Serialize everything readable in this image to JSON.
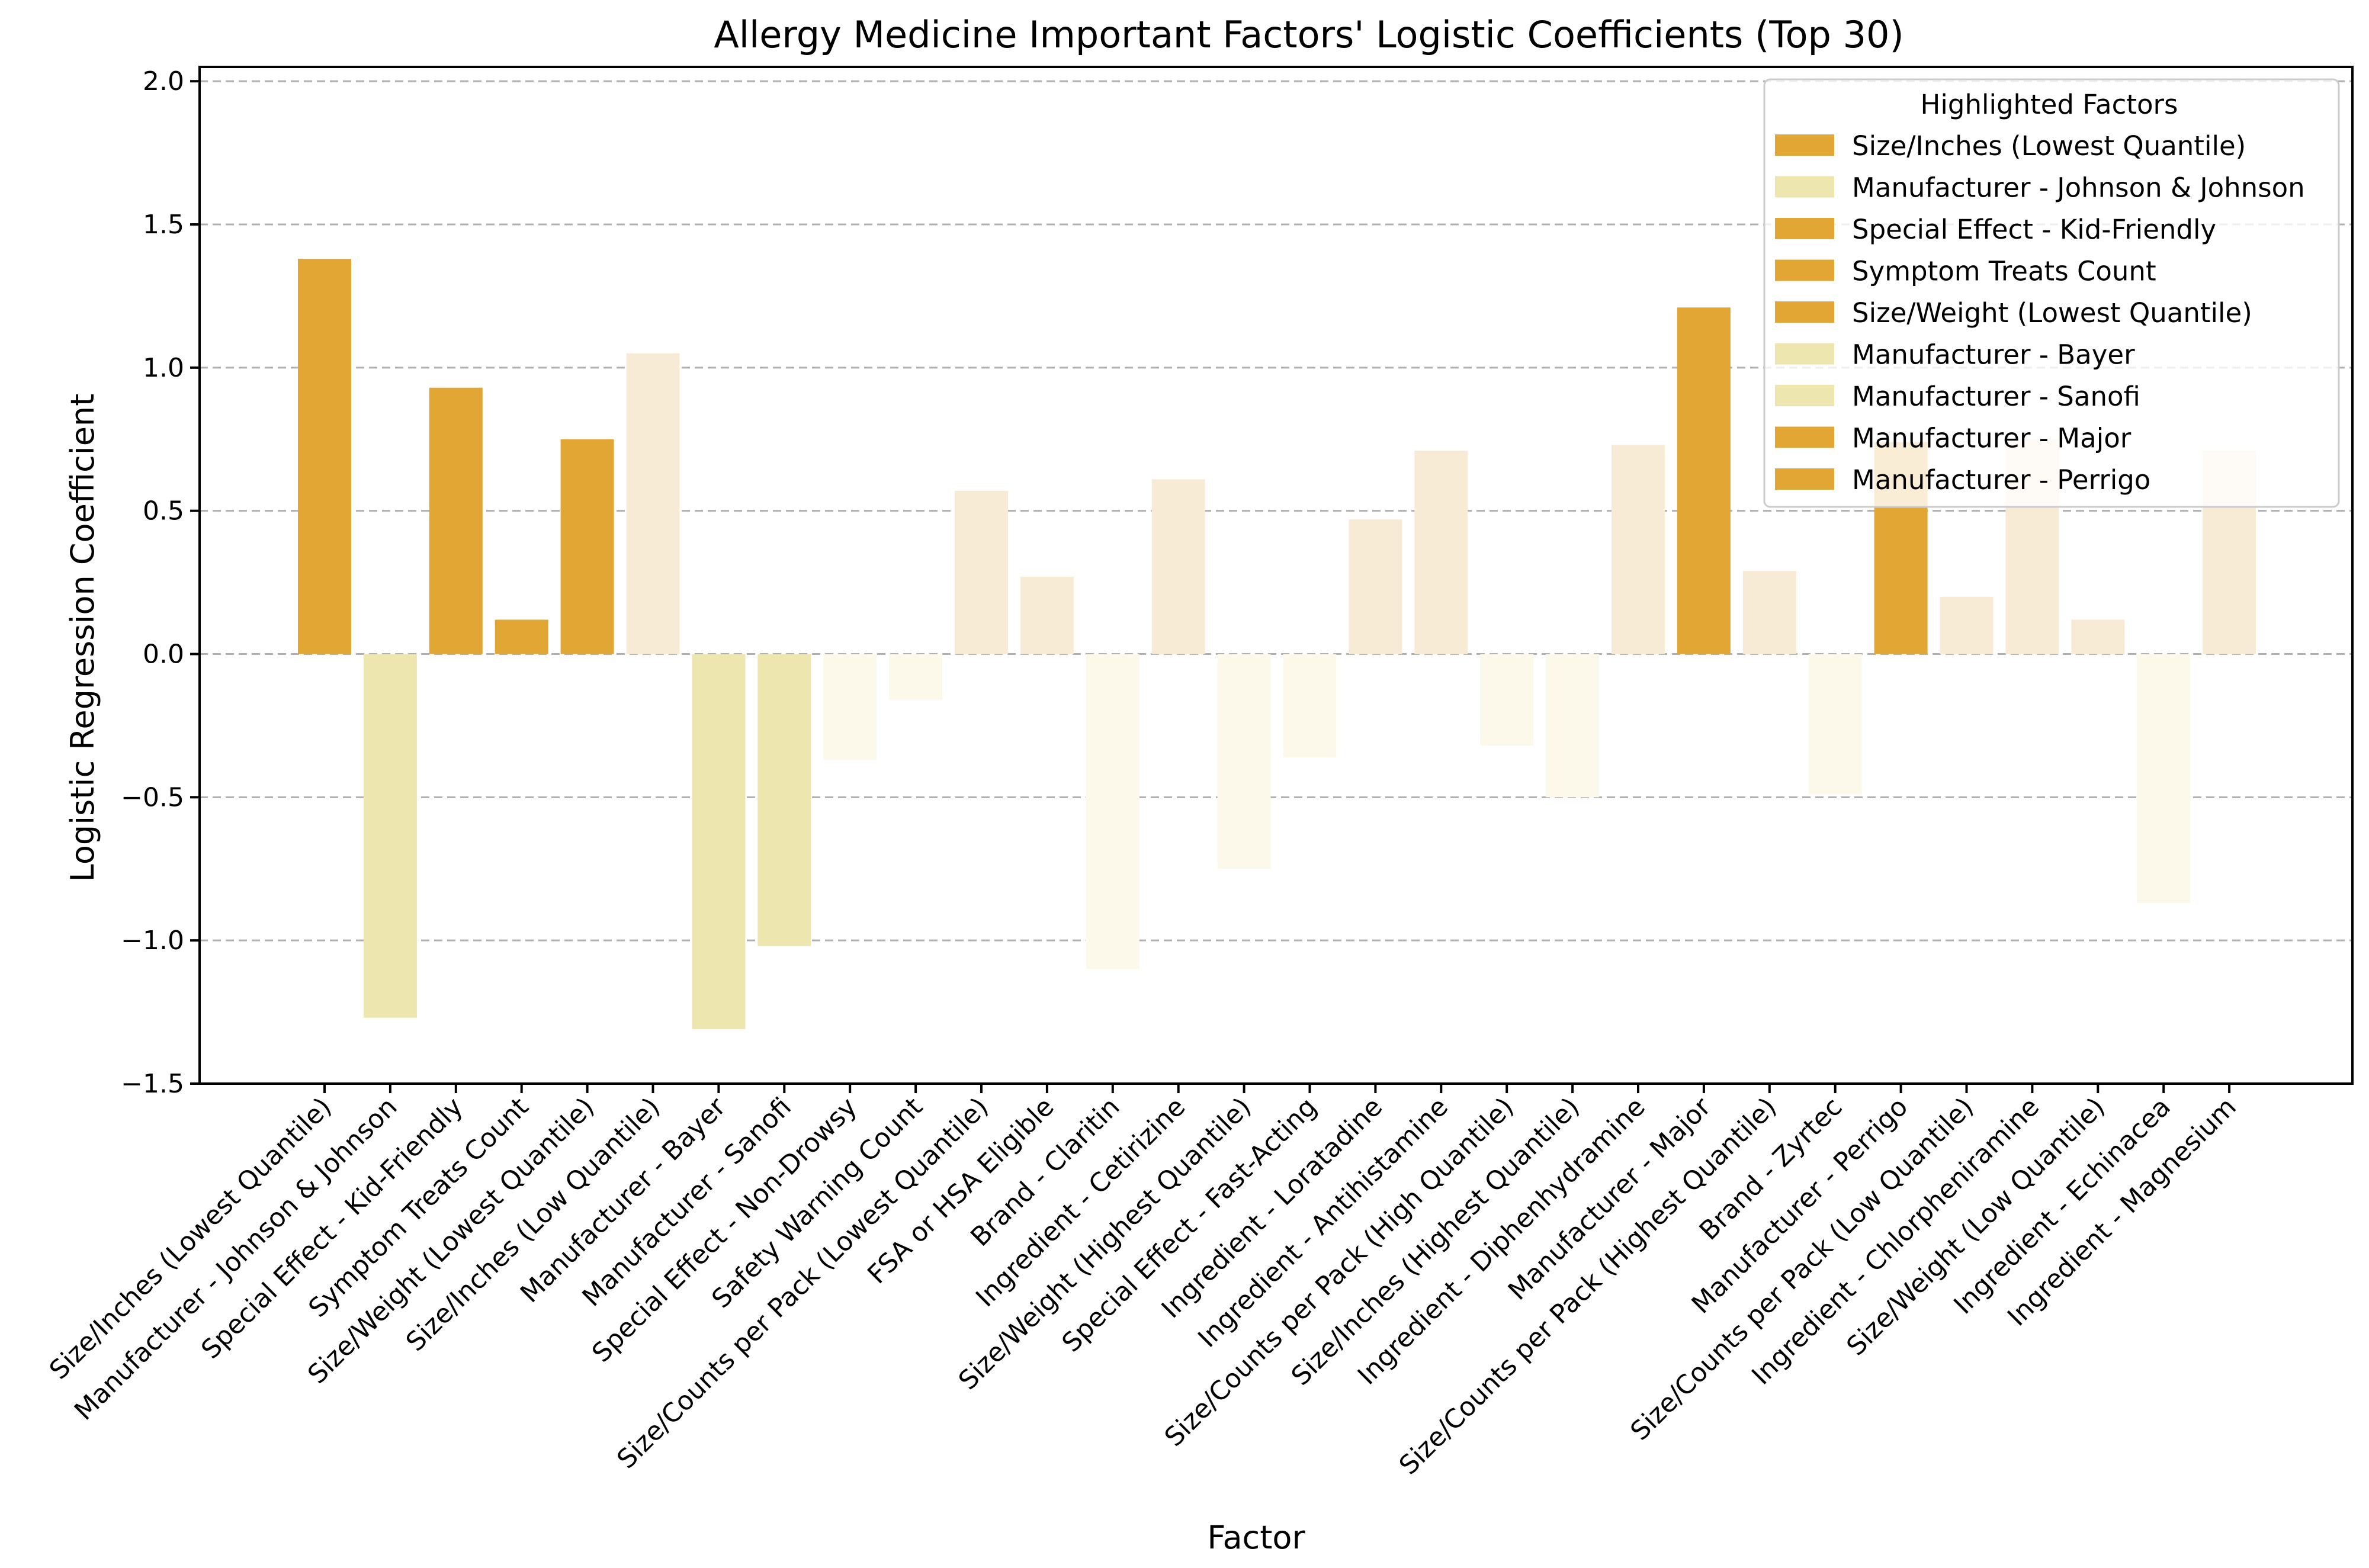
{
  "chart_data": {
    "type": "bar",
    "title": "Allergy Medicine Important Factors' Logistic Coefficients (Top 30)",
    "xlabel": "Factor",
    "ylabel": "Logistic Regression Coefficient",
    "ylim": [
      -1.5,
      2.05
    ],
    "yticks": [
      -1.5,
      -1.0,
      -0.5,
      0.0,
      0.5,
      1.0,
      1.5,
      2.0
    ],
    "ytick_labels": [
      "−1.5",
      "−1.0",
      "−0.5",
      "0.0",
      "0.5",
      "1.0",
      "1.5",
      "2.0"
    ],
    "grid": "horizontal dashed",
    "legend_position": "top-right",
    "colors": {
      "highlight_positive": "#e2a635",
      "highlight_negative": "#ede6ae",
      "other_positive": "#f8ebd5",
      "other_negative": "#fcf9ea",
      "grid": "#b0b0b0",
      "axis": "#000000"
    },
    "categories": [
      "Size/Inches (Lowest Quantile)",
      "Manufacturer - Johnson & Johnson",
      "Special Effect - Kid-Friendly",
      "Symptom Treats Count",
      "Size/Weight (Lowest Quantile)",
      "Size/Inches (Low Quantile)",
      "Manufacturer - Bayer",
      "Manufacturer - Sanofi",
      "Special Effect - Non-Drowsy",
      "Safety Warning Count",
      "Size/Counts per Pack (Lowest Quantile)",
      "FSA or HSA Eligible",
      "Brand - Claritin",
      "Ingredient - Cetirizine",
      "Size/Weight (Highest Quantile)",
      "Special Effect - Fast-Acting",
      "Ingredient - Loratadine",
      "Ingredient - Antihistamine",
      "Size/Counts per Pack (High Quantile)",
      "Size/Inches (Highest Quantile)",
      "Ingredient - Diphenhydramine",
      "Manufacturer - Major",
      "Size/Counts per Pack (Highest Quantile)",
      "Brand - Zyrtec",
      "Manufacturer - Perrigo",
      "Size/Counts per Pack (Low Quantile)",
      "Ingredient - Chlorpheniramine",
      "Size/Weight (Low Quantile)",
      "Ingredient - Echinacea",
      "Ingredient - Magnesium"
    ],
    "values": [
      1.38,
      -1.27,
      0.93,
      0.12,
      0.75,
      1.05,
      -1.31,
      -1.02,
      -0.37,
      -0.16,
      0.57,
      0.27,
      -1.1,
      0.61,
      -0.75,
      -0.36,
      0.47,
      0.71,
      -0.32,
      -0.5,
      0.73,
      1.21,
      0.29,
      -0.49,
      0.74,
      0.2,
      0.75,
      0.12,
      -0.87,
      0.71
    ],
    "highlighted": [
      true,
      true,
      true,
      true,
      true,
      false,
      true,
      true,
      false,
      false,
      false,
      false,
      false,
      false,
      false,
      false,
      false,
      false,
      false,
      false,
      false,
      true,
      false,
      false,
      true,
      false,
      false,
      false,
      false,
      false
    ],
    "legend": {
      "title": "Highlighted Factors",
      "entries": [
        {
          "label": "Size/Inches (Lowest Quantile)",
          "color": "#e2a635"
        },
        {
          "label": "Manufacturer - Johnson & Johnson",
          "color": "#ede6ae"
        },
        {
          "label": "Special Effect - Kid-Friendly",
          "color": "#e2a635"
        },
        {
          "label": "Symptom Treats Count",
          "color": "#e2a635"
        },
        {
          "label": "Size/Weight (Lowest Quantile)",
          "color": "#e2a635"
        },
        {
          "label": "Manufacturer - Bayer",
          "color": "#ede6ae"
        },
        {
          "label": "Manufacturer - Sanofi",
          "color": "#ede6ae"
        },
        {
          "label": "Manufacturer - Major",
          "color": "#e2a635"
        },
        {
          "label": "Manufacturer - Perrigo",
          "color": "#e2a635"
        }
      ]
    }
  }
}
